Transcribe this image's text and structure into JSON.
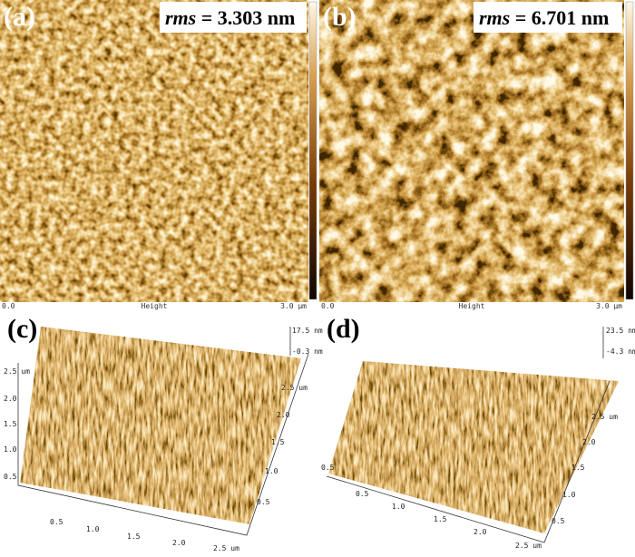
{
  "maps": [
    {
      "label": "(a)",
      "rms_symbol": "rms",
      "rms_text": " = 3.303 nm",
      "axis_label": "Height",
      "scale_start": "0.0",
      "scale_end": "3.0 µm"
    },
    {
      "label": "(b)",
      "rms_symbol": "rms",
      "rms_text": " = 6.701 nm",
      "axis_label": "Height",
      "scale_start": "0.0",
      "scale_end": "3.0 µm"
    }
  ],
  "surfaces": [
    {
      "label": "(c)",
      "z_max": "17.5 nm",
      "z_min": "-0.3 nm",
      "left_ticks": [
        "0.5",
        "1.0",
        "1.5",
        "2.0",
        "2.5 um"
      ],
      "bottom_ticks": [
        "0.5",
        "1.0",
        "1.5",
        "2.0",
        "2.5 um"
      ],
      "right_ticks": [
        "0.5",
        "1.0",
        "1.5",
        "2.0",
        "2.5 um"
      ]
    },
    {
      "label": "(d)",
      "z_max": "23.5 nm",
      "z_min": "-4.3 nm",
      "left_ticks": [
        "0.5"
      ],
      "bottom_ticks": [
        "0.5",
        "1.0",
        "1.5",
        "2.0",
        "2.5 um"
      ],
      "right_ticks": [
        "0.5",
        "1.0",
        "1.5",
        "2.0",
        "2.5 um"
      ]
    }
  ]
}
